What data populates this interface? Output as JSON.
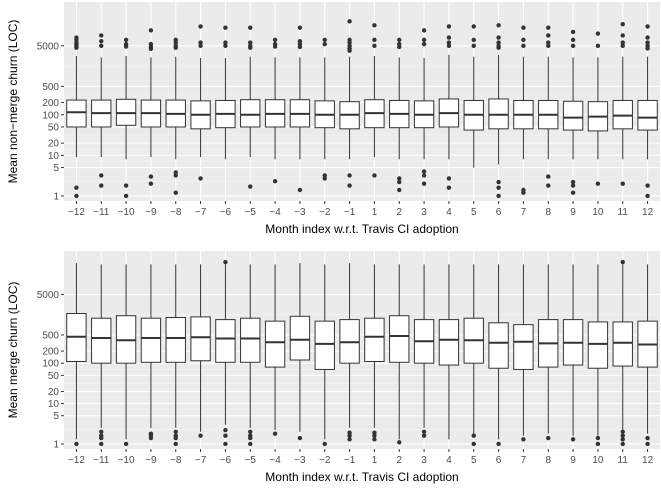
{
  "chart_data": [
    {
      "type": "box",
      "xlabel": "Month index w.r.t. Travis CI adoption",
      "ylabel": "Mean non−merge churn (LOC)",
      "yscale": "log10",
      "ylim": [
        0.75,
        60000
      ],
      "grid": true,
      "categories": [
        "−12",
        "−11",
        "−10",
        "−9",
        "−8",
        "−7",
        "−6",
        "−5",
        "−4",
        "−3",
        "−2",
        "−1",
        "1",
        "2",
        "3",
        "4",
        "5",
        "6",
        "7",
        "8",
        "9",
        "10",
        "11",
        "12"
      ],
      "y_ticks": [
        "1",
        "5",
        "10",
        "20",
        "50",
        "100",
        "200",
        "500",
        "5000"
      ],
      "y_tick_values": [
        1,
        5,
        10,
        20,
        50,
        100,
        200,
        500,
        5000
      ],
      "series": [
        {
          "q1": 50,
          "median": 115,
          "q3": 230,
          "wlow": 9,
          "whigh": 2800,
          "outliers": [
            1.0,
            1.6,
            8000,
            7000,
            6000,
            5500,
            5000,
            4500
          ]
        },
        {
          "q1": 50,
          "median": 110,
          "q3": 230,
          "wlow": 9,
          "whigh": 2600,
          "outliers": [
            1.8,
            3.2,
            9000,
            6500,
            5000
          ]
        },
        {
          "q1": 55,
          "median": 110,
          "q3": 240,
          "wlow": 8,
          "whigh": 2800,
          "outliers": [
            1.0,
            1.8,
            7000,
            5500,
            4800
          ]
        },
        {
          "q1": 50,
          "median": 110,
          "q3": 230,
          "wlow": 9,
          "whigh": 2600,
          "outliers": [
            2.0,
            3.0,
            12000,
            5500,
            4700,
            4200
          ]
        },
        {
          "q1": 50,
          "median": 105,
          "q3": 230,
          "wlow": 8,
          "whigh": 2700,
          "outliers": [
            1.2,
            3.2,
            3.8,
            7000,
            6000,
            5000,
            4500
          ]
        },
        {
          "q1": 45,
          "median": 100,
          "q3": 220,
          "wlow": 9,
          "whigh": 2500,
          "outliers": [
            2.7,
            15000,
            6000,
            5000
          ]
        },
        {
          "q1": 48,
          "median": 105,
          "q3": 225,
          "wlow": 8,
          "whigh": 2500,
          "outliers": [
            14000,
            6000,
            5000
          ]
        },
        {
          "q1": 50,
          "median": 100,
          "q3": 235,
          "wlow": 9,
          "whigh": 2700,
          "outliers": [
            1.7,
            14000,
            6000,
            5000,
            4500
          ]
        },
        {
          "q1": 50,
          "median": 105,
          "q3": 235,
          "wlow": 8,
          "whigh": 2600,
          "outliers": [
            2.3,
            7000,
            5500,
            4800
          ]
        },
        {
          "q1": 50,
          "median": 105,
          "q3": 235,
          "wlow": 8,
          "whigh": 2600,
          "outliers": [
            1.4,
            14000,
            6500,
            5500,
            4700
          ]
        },
        {
          "q1": 48,
          "median": 100,
          "q3": 220,
          "wlow": 8,
          "whigh": 2600,
          "outliers": [
            2.7,
            3.2,
            7000,
            5500
          ]
        },
        {
          "q1": 45,
          "median": 100,
          "q3": 210,
          "wlow": 8,
          "whigh": 2700,
          "outliers": [
            1.8,
            3.2,
            20000,
            7000,
            6000,
            5000,
            4300,
            3800
          ]
        },
        {
          "q1": 48,
          "median": 110,
          "q3": 235,
          "wlow": 9,
          "whigh": 2800,
          "outliers": [
            3.2,
            16000,
            7000,
            5000
          ]
        },
        {
          "q1": 48,
          "median": 105,
          "q3": 225,
          "wlow": 8,
          "whigh": 2600,
          "outliers": [
            1.4,
            2.2,
            2.7,
            7000,
            5500,
            4700
          ]
        },
        {
          "q1": 48,
          "median": 100,
          "q3": 220,
          "wlow": 8,
          "whigh": 2500,
          "outliers": [
            2.0,
            3.2,
            4.0,
            12000,
            7000,
            5500
          ]
        },
        {
          "q1": 50,
          "median": 110,
          "q3": 245,
          "wlow": 8,
          "whigh": 3000,
          "outliers": [
            1.6,
            2.7,
            15000,
            8000,
            6000,
            5000
          ]
        },
        {
          "q1": 42,
          "median": 100,
          "q3": 225,
          "wlow": 5,
          "whigh": 2700,
          "outliers": [
            15000,
            7000,
            5000
          ]
        },
        {
          "q1": 45,
          "median": 100,
          "q3": 245,
          "wlow": 6,
          "whigh": 3000,
          "outliers": [
            1.0,
            1.6,
            2.2,
            16000,
            8000,
            6000,
            5000,
            4500
          ]
        },
        {
          "q1": 45,
          "median": 100,
          "q3": 225,
          "wlow": 8,
          "whigh": 2700,
          "outliers": [
            1.2,
            1.4,
            14000,
            7000,
            5000
          ]
        },
        {
          "q1": 45,
          "median": 100,
          "q3": 225,
          "wlow": 8,
          "whigh": 2700,
          "outliers": [
            1.8,
            3.0,
            14000,
            9000,
            6000,
            5000
          ]
        },
        {
          "q1": 42,
          "median": 85,
          "q3": 215,
          "wlow": 8,
          "whigh": 2600,
          "outliers": [
            1.2,
            1.8,
            2.2,
            11000,
            7000,
            5000
          ]
        },
        {
          "q1": 40,
          "median": 90,
          "q3": 210,
          "wlow": 8,
          "whigh": 2600,
          "outliers": [
            2.0,
            10000,
            5000
          ]
        },
        {
          "q1": 45,
          "median": 95,
          "q3": 225,
          "wlow": 8,
          "whigh": 2700,
          "outliers": [
            2.0,
            17000,
            9000,
            6000,
            5000
          ]
        },
        {
          "q1": 42,
          "median": 85,
          "q3": 225,
          "wlow": 8,
          "whigh": 2700,
          "outliers": [
            1.0,
            1.8,
            15000,
            8000,
            6000,
            5000,
            4300
          ]
        }
      ]
    },
    {
      "type": "box",
      "xlabel": "Month index w.r.t. Travis CI adoption",
      "ylabel": "Mean merge churn (LOC)",
      "yscale": "log10",
      "ylim": [
        0.75,
        60000
      ],
      "grid": true,
      "categories": [
        "−12",
        "−11",
        "−10",
        "−9",
        "−8",
        "−7",
        "−6",
        "−5",
        "−4",
        "−3",
        "−2",
        "−1",
        "1",
        "2",
        "3",
        "4",
        "5",
        "6",
        "7",
        "8",
        "9",
        "10",
        "11",
        "12"
      ],
      "y_ticks": [
        "1",
        "5",
        "10",
        "20",
        "50",
        "100",
        "200",
        "500",
        "5000"
      ],
      "y_tick_values": [
        1,
        5,
        10,
        20,
        50,
        100,
        200,
        500,
        5000
      ],
      "series": [
        {
          "q1": 110,
          "median": 450,
          "q3": 1700,
          "wlow": 1.3,
          "whigh": 30000,
          "outliers": [
            1.0
          ]
        },
        {
          "q1": 100,
          "median": 420,
          "q3": 1300,
          "wlow": 2.5,
          "whigh": 28000,
          "outliers": [
            1.0,
            1.4,
            1.6,
            2.0
          ]
        },
        {
          "q1": 100,
          "median": 370,
          "q3": 1500,
          "wlow": 1.3,
          "whigh": 28000,
          "outliers": [
            1.0
          ]
        },
        {
          "q1": 105,
          "median": 420,
          "q3": 1300,
          "wlow": 2.5,
          "whigh": 28000,
          "outliers": [
            1.4,
            1.6,
            1.8
          ]
        },
        {
          "q1": 105,
          "median": 420,
          "q3": 1350,
          "wlow": 2.5,
          "whigh": 28000,
          "outliers": [
            1.0,
            1.4,
            1.6,
            2.0
          ]
        },
        {
          "q1": 115,
          "median": 440,
          "q3": 1400,
          "wlow": 2.0,
          "whigh": 28000,
          "outliers": [
            1.6
          ]
        },
        {
          "q1": 105,
          "median": 410,
          "q3": 1200,
          "wlow": 3.0,
          "whigh": 28000,
          "outliers": [
            1.0,
            1.6,
            2.2,
            32000
          ]
        },
        {
          "q1": 105,
          "median": 410,
          "q3": 1300,
          "wlow": 2.5,
          "whigh": 28000,
          "outliers": [
            1.0,
            1.4,
            1.6,
            2.0
          ]
        },
        {
          "q1": 80,
          "median": 330,
          "q3": 1100,
          "wlow": 2.2,
          "whigh": 28000,
          "outliers": [
            1.8
          ]
        },
        {
          "q1": 120,
          "median": 380,
          "q3": 1450,
          "wlow": 2.0,
          "whigh": 30000,
          "outliers": [
            1.4
          ]
        },
        {
          "q1": 70,
          "median": 300,
          "q3": 1100,
          "wlow": 1.3,
          "whigh": 28000,
          "outliers": [
            1.0
          ]
        },
        {
          "q1": 100,
          "median": 330,
          "q3": 1200,
          "wlow": 2.5,
          "whigh": 30000,
          "outliers": [
            1.3,
            1.6,
            1.9
          ]
        },
        {
          "q1": 110,
          "median": 450,
          "q3": 1300,
          "wlow": 2.5,
          "whigh": 28000,
          "outliers": [
            1.3,
            1.6,
            1.9
          ]
        },
        {
          "q1": 105,
          "median": 470,
          "q3": 1500,
          "wlow": 1.3,
          "whigh": 28000,
          "outliers": [
            1.1
          ]
        },
        {
          "q1": 100,
          "median": 350,
          "q3": 1200,
          "wlow": 2.5,
          "whigh": 28000,
          "outliers": [
            1.6,
            2.0
          ]
        },
        {
          "q1": 90,
          "median": 380,
          "q3": 1200,
          "wlow": 1.3,
          "whigh": 28000,
          "outliers": []
        },
        {
          "q1": 100,
          "median": 370,
          "q3": 1300,
          "wlow": 1.8,
          "whigh": 28000,
          "outliers": [
            1.0,
            1.6
          ]
        },
        {
          "q1": 75,
          "median": 320,
          "q3": 1000,
          "wlow": 1.3,
          "whigh": 28000,
          "outliers": [
            1.0
          ]
        },
        {
          "q1": 70,
          "median": 340,
          "q3": 900,
          "wlow": 1.6,
          "whigh": 28000,
          "outliers": [
            1.3
          ]
        },
        {
          "q1": 80,
          "median": 310,
          "q3": 1200,
          "wlow": 1.8,
          "whigh": 28000,
          "outliers": [
            1.4
          ]
        },
        {
          "q1": 90,
          "median": 320,
          "q3": 1200,
          "wlow": 1.6,
          "whigh": 28000,
          "outliers": [
            1.3
          ]
        },
        {
          "q1": 75,
          "median": 300,
          "q3": 1050,
          "wlow": 1.6,
          "whigh": 28000,
          "outliers": [
            1.0,
            1.4
          ]
        },
        {
          "q1": 85,
          "median": 320,
          "q3": 1050,
          "wlow": 1.8,
          "whigh": 28000,
          "outliers": [
            1.0,
            1.3,
            1.6,
            2.0,
            32000
          ]
        },
        {
          "q1": 80,
          "median": 290,
          "q3": 1100,
          "wlow": 1.8,
          "whigh": 28000,
          "outliers": [
            1.0,
            1.4
          ]
        }
      ]
    }
  ]
}
